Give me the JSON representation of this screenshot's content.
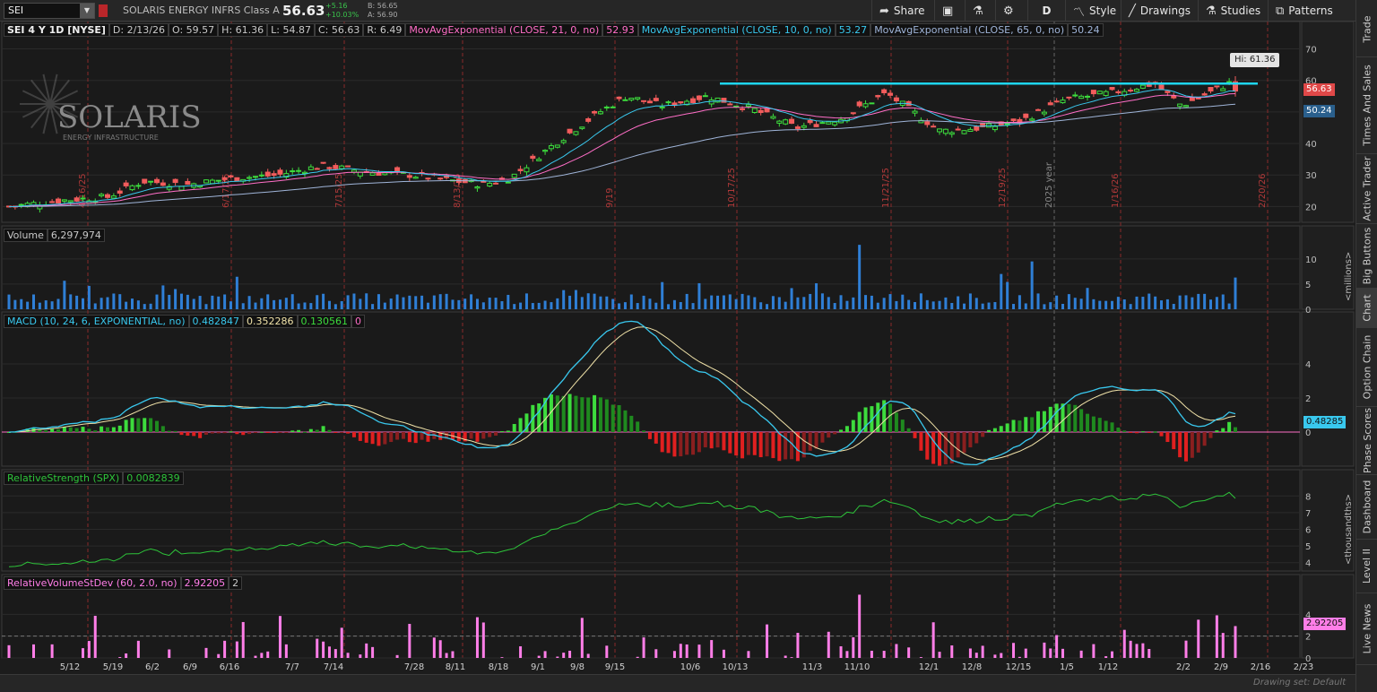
{
  "toolbar": {
    "symbol": "SEI",
    "company_name": "SOLARIS ENERGY INFRS Class A",
    "last_price": "56.63",
    "change_abs": "+5.16",
    "change_pct": "+10.03%",
    "bid": "B: 56.65",
    "ask": "A: 56.90",
    "buttons": {
      "share": "Share",
      "aggregation": "D",
      "style": "Style",
      "drawings": "Drawings",
      "studies": "Studies",
      "patterns": "Patterns"
    }
  },
  "sidebar": {
    "tabs": [
      "Trade",
      "Times And Sales",
      "Active Trader",
      "Big Buttons",
      "Chart",
      "Option Chain",
      "Phase Scores",
      "Dashboard",
      "Level II",
      "Live News"
    ],
    "active": "Chart"
  },
  "price_pane": {
    "header": {
      "symbol_label": "SEI 4 Y 1D [NYSE]",
      "date": "D: 2/13/26",
      "open": "O: 59.57",
      "high": "H: 61.36",
      "low": "L: 54.87",
      "close": "C: 56.63",
      "range": "R: 6.49"
    },
    "studies": [
      {
        "label": "MovAvgExponential (CLOSE, 21, 0, no)",
        "value": "52.93",
        "color": "#ff6ec7"
      },
      {
        "label": "MovAvgExponential (CLOSE, 10, 0, no)",
        "value": "53.27",
        "color": "#39c8ee"
      },
      {
        "label": "MovAvgExponential (CLOSE, 65, 0, no)",
        "value": "50.24",
        "color": "#9fb4d8"
      }
    ],
    "hi_marker": "Hi: 61.36",
    "last_tag": "56.63",
    "ema65_tag": "50.24",
    "y_ticks": [
      "70",
      "60",
      "50",
      "40",
      "30",
      "20"
    ],
    "vertical_notes": [
      "4/16/25",
      "6/17/25",
      "7/15/25",
      "8/13/25",
      "9/19",
      "10/17/25",
      "11/21/25",
      "12/19/25",
      "2025 year",
      "1/16/26",
      "2/20/26"
    ],
    "logo_text": "SOLARIS",
    "logo_sub": "ENERGY INFRASTRUCTURE"
  },
  "volume_pane": {
    "label": "Volume",
    "value": "6,297,974",
    "y_ticks": [
      "10",
      "5",
      "0"
    ],
    "unit": "<millions>"
  },
  "macd_pane": {
    "label": "MACD (10, 24, 6, EXPONENTIAL, no)",
    "value": "0.482847",
    "avg": "0.352286",
    "diff": "0.130561",
    "zero": "0",
    "tag": "0.48285",
    "y_ticks": [
      "4",
      "2",
      "0"
    ]
  },
  "rs_pane": {
    "label": "RelativeStrength (SPX)",
    "value": "0.0082839",
    "y_ticks": [
      "8",
      "7",
      "6",
      "5",
      "4"
    ],
    "unit": "<thousandths>"
  },
  "rvsd_pane": {
    "label": "RelativeVolumeStDev (60, 2.0, no)",
    "value": "2.92205",
    "threshold": "2",
    "tag": "2.92205",
    "y_ticks": [
      "4",
      "2",
      "0"
    ]
  },
  "x_axis": {
    "labels": [
      "5/12",
      "5/19",
      "6/2",
      "6/9",
      "6/16",
      "7/7",
      "7/14",
      "7/28",
      "8/11",
      "8/18",
      "9/1",
      "9/8",
      "9/15",
      "10/6",
      "10/13",
      "11/3",
      "11/10",
      "12/1",
      "12/8",
      "12/15",
      "1/5",
      "1/12",
      "2/2",
      "2/9",
      "2/16",
      "2/23"
    ]
  },
  "footer": {
    "drawing_set": "Drawing set: Default"
  },
  "colors": {
    "up": "#3ddc3d",
    "down": "#f25c5c",
    "ema10": "#39c8ee",
    "ema21": "#ff6ec7",
    "ema65": "#9fb4d8",
    "resistance": "#1fd6f0",
    "volume": "#2f7fd6",
    "macd_line": "#39c8ee",
    "macd_avg": "#f0e2a8",
    "rs_line": "#2ec43a",
    "rvsd_bar": "#ff7ee8"
  }
}
